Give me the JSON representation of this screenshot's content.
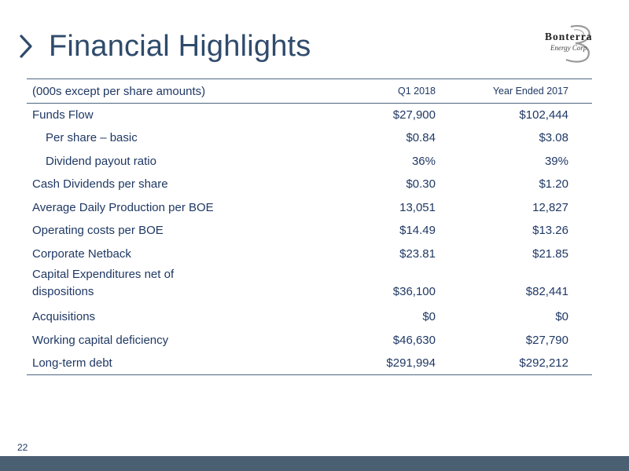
{
  "slide": {
    "title": "Financial Highlights",
    "page_number": "22"
  },
  "logo": {
    "name": "Bonterra",
    "subtitle": "Energy Corp."
  },
  "table": {
    "header": {
      "label": "(000s except per share amounts)",
      "col1": "Q1 2018",
      "col2": "Year Ended 2017"
    },
    "rows": [
      {
        "label": "Funds Flow",
        "q1_2018": "$27,900",
        "ye_2017": "$102,444"
      },
      {
        "label": "Per share – basic",
        "q1_2018": "$0.84",
        "ye_2017": "$3.08"
      },
      {
        "label": "Dividend payout ratio",
        "q1_2018": "36%",
        "ye_2017": "39%"
      },
      {
        "label": "Cash Dividends per share",
        "q1_2018": "$0.30",
        "ye_2017": "$1.20"
      },
      {
        "label": "Average Daily Production per BOE",
        "q1_2018": "13,051",
        "ye_2017": "12,827"
      },
      {
        "label": "Operating costs per BOE",
        "q1_2018": "$14.49",
        "ye_2017": "$13.26"
      },
      {
        "label": "Corporate Netback",
        "q1_2018": "$23.81",
        "ye_2017": "$21.85"
      },
      {
        "label_line1": "Capital Expenditures net of",
        "label_line2": "dispositions",
        "q1_2018": "$36,100",
        "ye_2017": "$82,441"
      },
      {
        "label": "Acquisitions",
        "q1_2018": "$0",
        "ye_2017": "$0"
      },
      {
        "label": "Working capital deficiency",
        "q1_2018": "$46,630",
        "ye_2017": "$27,790"
      },
      {
        "label": "Long-term debt",
        "q1_2018": "$291,994",
        "ye_2017": "$292,212"
      }
    ]
  },
  "colors": {
    "title": "#2f4b6c",
    "text": "#1f3864",
    "rule": "#4d6680",
    "footer_bar": "#4b5f72"
  }
}
